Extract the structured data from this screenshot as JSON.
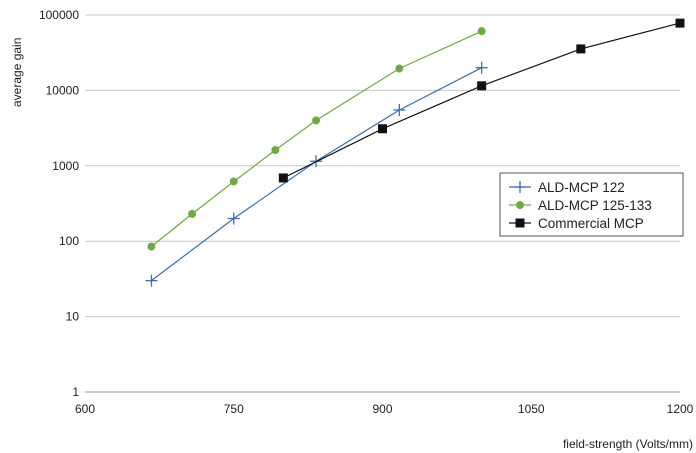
{
  "chart_data": {
    "type": "line",
    "title": "",
    "xlabel": "field-strength (Volts/mm)",
    "ylabel": "average gain",
    "xlim": [
      600,
      1200
    ],
    "ylim": [
      1,
      100000
    ],
    "yscale": "log",
    "grid": "horizontal",
    "x_ticks": [
      "600",
      "750",
      "900",
      "1050",
      "1200"
    ],
    "y_ticks": [
      "1",
      "10",
      "100",
      "1000",
      "10000",
      "100000"
    ],
    "legend_position": "right",
    "series": [
      {
        "name": "ALD-MCP 122",
        "color": "#3c6fa8",
        "marker": "plus",
        "x": [
          667,
          750,
          833,
          917,
          1000
        ],
        "y": [
          30,
          200,
          1150,
          5500,
          20000
        ]
      },
      {
        "name": "ALD-MCP 125-133",
        "color": "#6faa46",
        "marker": "circle",
        "x": [
          667,
          708,
          750,
          792,
          833,
          917,
          1000
        ],
        "y": [
          85,
          230,
          620,
          1620,
          4000,
          19500,
          61000
        ]
      },
      {
        "name": "Commercial MCP",
        "color": "#111111",
        "marker": "square",
        "x": [
          800,
          900,
          1000,
          1100,
          1200
        ],
        "y": [
          690,
          3100,
          11500,
          35500,
          78000
        ]
      }
    ]
  }
}
